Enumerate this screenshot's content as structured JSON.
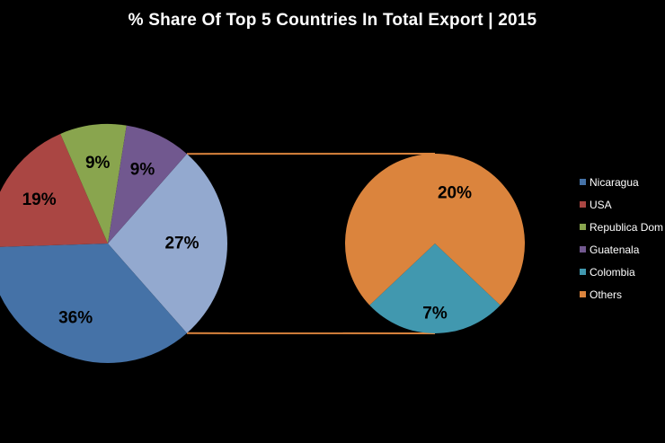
{
  "chart_data": {
    "type": "pie",
    "title": "% Share Of Top 5 Countries In Total Export | 2015",
    "subtype": "pie-of-pie",
    "slices": [
      {
        "name": "Nicaragua",
        "value": 36,
        "label": "36%",
        "color": "#4572A7",
        "in_secondary": false
      },
      {
        "name": "USA",
        "value": 19,
        "label": "19%",
        "color": "#AA4643",
        "in_secondary": false
      },
      {
        "name": "Republica Dominicana",
        "legend_text": "Republica Dom",
        "value": 9,
        "label": "9%",
        "color": "#89A54E",
        "in_secondary": false
      },
      {
        "name": "Guatenala",
        "value": 9,
        "label": "9%",
        "color": "#71588F",
        "in_secondary": false
      },
      {
        "name": "Colombia",
        "value": 7,
        "label": "7%",
        "color": "#4198AF",
        "in_secondary": true
      },
      {
        "name": "Others",
        "value": 20,
        "label": "20%",
        "color": "#DB843D",
        "in_secondary": true
      }
    ],
    "primary_other_label": "27%",
    "primary_other_color": "#93A9CF",
    "connector_color": "#DB843D",
    "legend_position": "right"
  }
}
